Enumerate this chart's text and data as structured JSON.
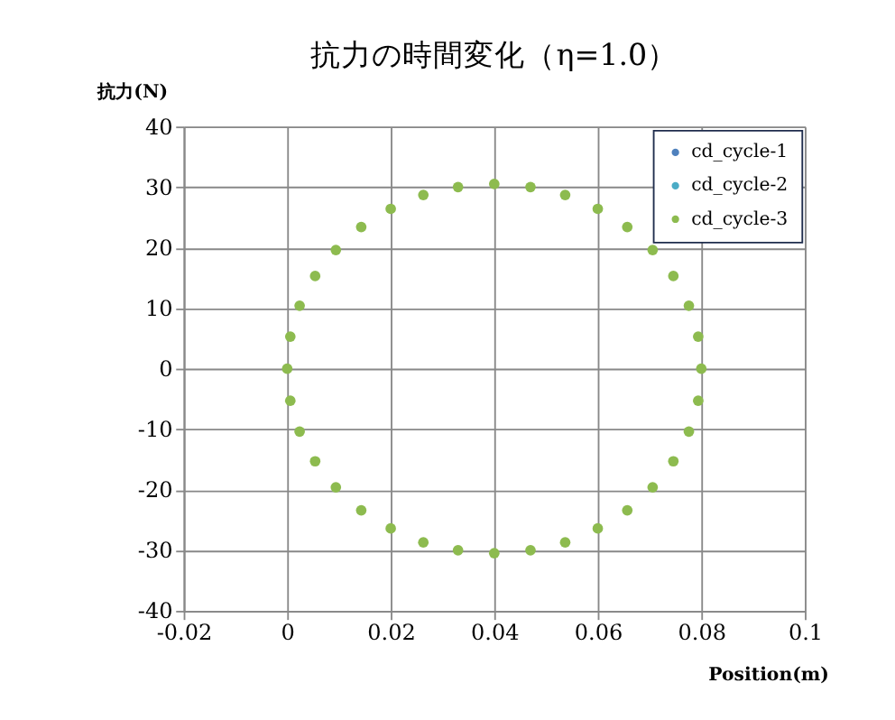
{
  "chart_data": {
    "type": "scatter",
    "title": "抗力の時間変化（η=1.0）",
    "xlabel": "Position(m)",
    "ylabel": "抗力(N)",
    "xlim": [
      -0.02,
      0.1
    ],
    "xticks": [
      -0.02,
      0,
      0.02,
      0.04,
      0.06,
      0.08,
      0.1
    ],
    "ylim": [
      -40,
      40
    ],
    "yticks": [
      -40,
      -30,
      -20,
      -10,
      0,
      10,
      20,
      30,
      40
    ],
    "grid": true,
    "legend": "top right",
    "marker": "circle",
    "series": [
      {
        "name": "cd_cycle-1",
        "color": "#4f81bd",
        "values": [
          null
        ]
      },
      {
        "name": "cd_cycle-2",
        "color": "#4bacc6",
        "values": [
          null
        ]
      },
      {
        "name": "cd_cycle-3",
        "color": "#8dbb4f",
        "x": [
          0.08,
          0.0794,
          0.0776,
          0.0746,
          0.0706,
          0.0657,
          0.06,
          0.0537,
          0.047,
          0.04,
          0.033,
          0.0263,
          0.02,
          0.0143,
          0.0094,
          0.0054,
          0.0024,
          0.0006,
          0,
          0.0006,
          0.0024,
          0.0054,
          0.0094,
          0.0143,
          0.02,
          0.0263,
          0.033,
          0.04,
          0.047,
          0.0537,
          0.06,
          0.0657,
          0.0706,
          0.0746,
          0.0776,
          0.0794
        ],
        "values": [
          0,
          5.3,
          10.4,
          15.3,
          19.6,
          23.4,
          26.4,
          28.7,
          30.0,
          30.5,
          30.0,
          28.7,
          26.4,
          23.4,
          19.6,
          15.3,
          10.4,
          5.3,
          0,
          -5.3,
          -10.4,
          -15.3,
          -19.6,
          -23.4,
          -26.4,
          -28.7,
          -30.0,
          -30.5,
          -30.0,
          -28.7,
          -26.4,
          -23.4,
          -19.6,
          -15.3,
          -10.4,
          -5.3
        ]
      }
    ]
  }
}
